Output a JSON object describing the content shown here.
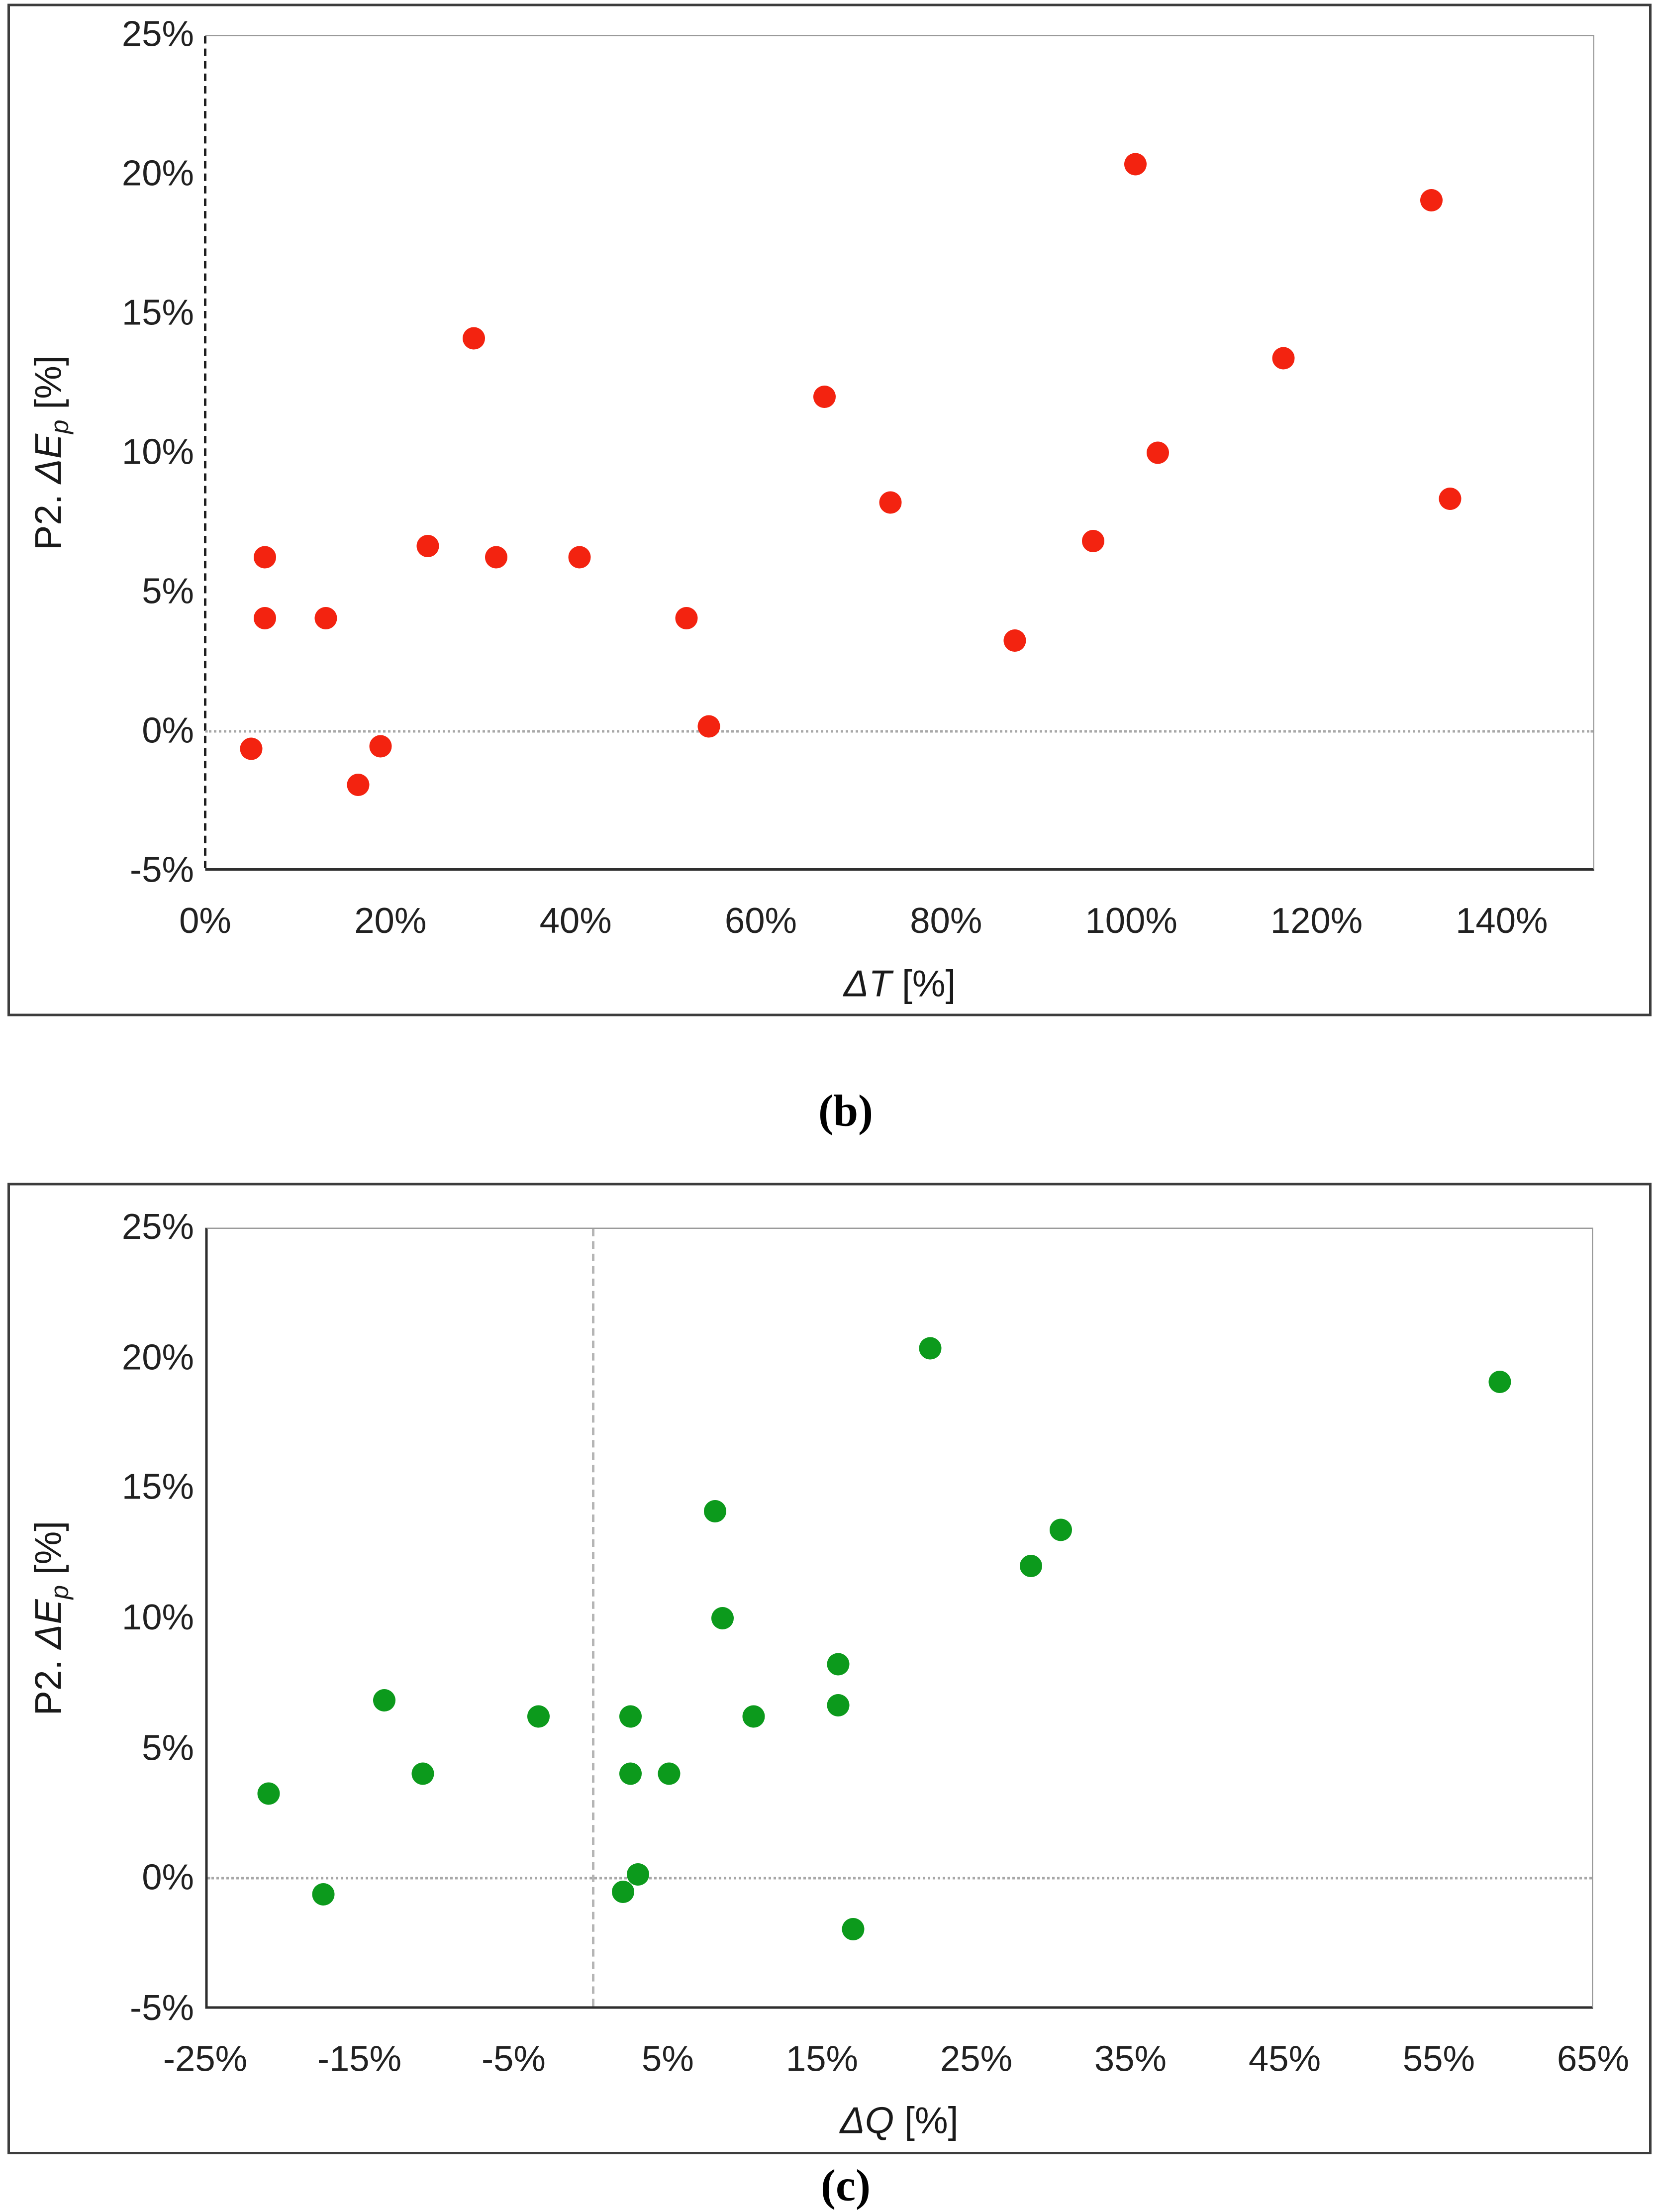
{
  "captions": {
    "b": "(b)",
    "c": "(c)"
  },
  "chart_data": [
    {
      "id": "b",
      "type": "scatter",
      "title": "",
      "xlabel": "ΔT [%]",
      "xlabel_symbol": "ΔT",
      "xlabel_suffix": " [%]",
      "ylabel": "P2. ΔEp [%]",
      "ylabel_prefix": "P2. ",
      "ylabel_symbol": "ΔE",
      "ylabel_sub": "p",
      "ylabel_suffix": " [%]",
      "xlim": [
        0,
        150
      ],
      "ylim": [
        -5,
        25
      ],
      "grid": "off",
      "legend": "none",
      "zero_reference_lines": {
        "horizontal_at": 0,
        "vertical_at": 0
      },
      "x_ticks": {
        "values": [
          0,
          20,
          40,
          60,
          80,
          100,
          120,
          140
        ],
        "labels": [
          "0%",
          "20%",
          "40%",
          "60%",
          "80%",
          "100%",
          "120%",
          "140%"
        ]
      },
      "y_ticks": {
        "values": [
          25,
          20,
          15,
          10,
          5,
          0,
          -5
        ],
        "labels": [
          "25%",
          "20%",
          "15%",
          "10%",
          "5%",
          "0%",
          "-5%"
        ]
      },
      "series": [
        {
          "color": "#f32310",
          "points": [
            [
              5,
              -0.7
            ],
            [
              6.5,
              6.2
            ],
            [
              6.5,
              4.0
            ],
            [
              13,
              4.0
            ],
            [
              16.5,
              -2.0
            ],
            [
              19,
              -0.6
            ],
            [
              24,
              6.6
            ],
            [
              29,
              14.1
            ],
            [
              31.5,
              6.2
            ],
            [
              40.5,
              6.2
            ],
            [
              52,
              4.0
            ],
            [
              54.5,
              0.1
            ],
            [
              67,
              12.0
            ],
            [
              74,
              8.2
            ],
            [
              87.5,
              3.2
            ],
            [
              96,
              6.8
            ],
            [
              100.5,
              20.4
            ],
            [
              103,
              10.0
            ],
            [
              116.5,
              13.4
            ],
            [
              132.5,
              19.1
            ],
            [
              134.5,
              8.3
            ]
          ]
        }
      ]
    },
    {
      "id": "c",
      "type": "scatter",
      "title": "",
      "xlabel": "ΔQ [%]",
      "xlabel_symbol": "ΔQ",
      "xlabel_suffix": " [%]",
      "ylabel": "P2. ΔEp [%]",
      "ylabel_prefix": "P2. ",
      "ylabel_symbol": "ΔE",
      "ylabel_sub": "p",
      "ylabel_suffix": " [%]",
      "xlim": [
        -25,
        65
      ],
      "ylim": [
        -5,
        25
      ],
      "grid": "off",
      "legend": "none",
      "zero_reference_lines": {
        "horizontal_at": 0,
        "vertical_at": 0
      },
      "x_ticks": {
        "values": [
          -25,
          -15,
          -5,
          5,
          15,
          25,
          35,
          45,
          55,
          65
        ],
        "labels": [
          "-25%",
          "-15%",
          "-5%",
          "5%",
          "15%",
          "25%",
          "35%",
          "45%",
          "55%",
          "65%"
        ]
      },
      "y_ticks": {
        "values": [
          25,
          20,
          15,
          10,
          5,
          0,
          -5
        ],
        "labels": [
          "25%",
          "20%",
          "15%",
          "10%",
          "5%",
          "0%",
          "-5%"
        ]
      },
      "series": [
        {
          "color": "#0c9a1c",
          "points": [
            [
              -21,
              3.2
            ],
            [
              -17.5,
              -0.7
            ],
            [
              -13.5,
              6.8
            ],
            [
              -11,
              4.0
            ],
            [
              -3.5,
              6.2
            ],
            [
              2,
              -0.6
            ],
            [
              2.5,
              6.2
            ],
            [
              2.5,
              4.0
            ],
            [
              3,
              0.1
            ],
            [
              5,
              4.0
            ],
            [
              8,
              14.1
            ],
            [
              8.5,
              10.0
            ],
            [
              10.5,
              6.2
            ],
            [
              16,
              8.2
            ],
            [
              16,
              6.6
            ],
            [
              17,
              -2.0
            ],
            [
              22,
              20.4
            ],
            [
              28.5,
              12.0
            ],
            [
              30.5,
              13.4
            ],
            [
              59,
              19.1
            ]
          ]
        }
      ]
    }
  ]
}
